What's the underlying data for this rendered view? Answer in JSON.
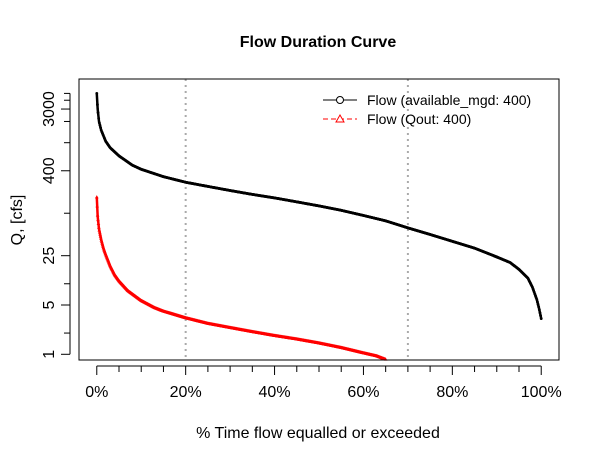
{
  "chart_data": {
    "type": "line",
    "title": "Flow Duration Curve",
    "xlabel": "% Time flow equalled or exceeded",
    "ylabel": "Q, [cfs]",
    "x_scale": "linear",
    "y_scale": "log",
    "xlim": [
      -0.04,
      1.04
    ],
    "ylim": [
      0.83,
      8000
    ],
    "grid": false,
    "x_ticks": [
      {
        "value": 0.0,
        "label": "0%"
      },
      {
        "value": 0.2,
        "label": "20%"
      },
      {
        "value": 0.4,
        "label": "40%"
      },
      {
        "value": 0.6,
        "label": "60%"
      },
      {
        "value": 0.8,
        "label": "80%"
      },
      {
        "value": 1.0,
        "label": "100%"
      }
    ],
    "x_minor_ticks": [
      0.05,
      0.1,
      0.15,
      0.25,
      0.3,
      0.35,
      0.45,
      0.5,
      0.55,
      0.65,
      0.7,
      0.75,
      0.85,
      0.9,
      0.95
    ],
    "y_ticks": [
      {
        "value": 1,
        "label": "1"
      },
      {
        "value": 5,
        "label": "5"
      },
      {
        "value": 25,
        "label": "25"
      },
      {
        "value": 400,
        "label": "400"
      },
      {
        "value": 3000,
        "label": "3000"
      }
    ],
    "y_minor_ticks": [
      2,
      10,
      100,
      1000,
      2000,
      4000,
      5000
    ],
    "reference_lines": [
      {
        "axis": "x",
        "value": 0.2,
        "style": "dotted",
        "color": "#aaaaaa"
      },
      {
        "axis": "x",
        "value": 0.7,
        "style": "dotted",
        "color": "#aaaaaa"
      }
    ],
    "legend": {
      "position": "top-right",
      "entries": [
        {
          "label": "Flow (available_mgd: 400)",
          "color": "#000000",
          "marker": "circle",
          "line": "solid"
        },
        {
          "label": "Flow (Qout: 400)",
          "color": "#ff0000",
          "marker": "triangle",
          "line": "dashed"
        }
      ]
    },
    "series": [
      {
        "name": "Flow (available_mgd: 400)",
        "color": "#000000",
        "marker": "circle",
        "x": [
          0.0,
          0.002,
          0.005,
          0.01,
          0.02,
          0.03,
          0.05,
          0.08,
          0.1,
          0.15,
          0.2,
          0.25,
          0.3,
          0.35,
          0.4,
          0.45,
          0.5,
          0.55,
          0.6,
          0.65,
          0.7,
          0.75,
          0.8,
          0.85,
          0.9,
          0.93,
          0.95,
          0.97,
          0.98,
          0.99,
          0.995,
          1.0
        ],
        "y": [
          5000,
          3000,
          2000,
          1500,
          1050,
          850,
          650,
          480,
          420,
          330,
          275,
          240,
          210,
          185,
          165,
          145,
          127,
          110,
          93,
          78,
          62,
          50,
          40,
          32,
          24,
          20,
          16,
          12,
          9,
          6,
          4.5,
          3.2
        ]
      },
      {
        "name": "Flow (Qout: 400)",
        "color": "#ff0000",
        "marker": "triangle",
        "x": [
          0.0,
          0.002,
          0.005,
          0.01,
          0.015,
          0.02,
          0.03,
          0.04,
          0.05,
          0.07,
          0.1,
          0.13,
          0.15,
          0.2,
          0.25,
          0.3,
          0.35,
          0.4,
          0.45,
          0.5,
          0.55,
          0.6,
          0.63,
          0.65
        ],
        "y": [
          170,
          90,
          60,
          42,
          32,
          26,
          18,
          13.5,
          11,
          8,
          5.8,
          4.6,
          4.1,
          3.3,
          2.75,
          2.4,
          2.1,
          1.85,
          1.65,
          1.45,
          1.25,
          1.05,
          0.95,
          0.85
        ]
      }
    ]
  }
}
